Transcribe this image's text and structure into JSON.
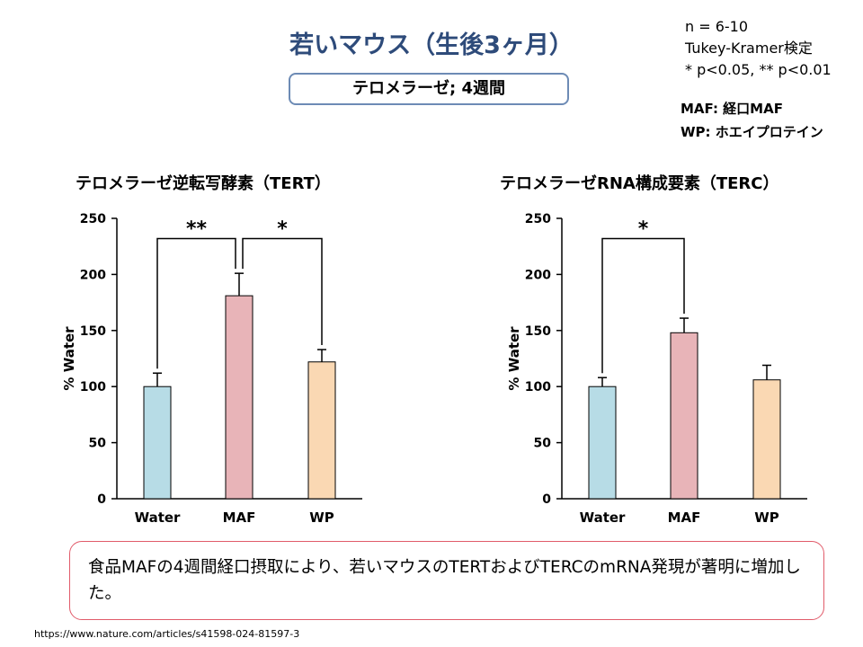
{
  "title": "若いマウス（生後3ヶ月）",
  "subtitle": "テロメラーゼ; 4週間",
  "notes": [
    "n = 6-10",
    "Tukey-Kramer検定",
    "* p<0.05, ** p<0.01"
  ],
  "abbreviations": [
    "MAF: 経口MAF",
    "WP: ホエイプロテイン"
  ],
  "colors": {
    "Water": "#b7dce6",
    "MAF": "#e8b4b8",
    "WP": "#fad8b3",
    "title": "#2e4b7a"
  },
  "chart_data": [
    {
      "type": "bar",
      "title": "テロメラーゼ逆転写酵素（TERT）",
      "ylabel": "% Water",
      "categories": [
        "Water",
        "MAF",
        "WP"
      ],
      "values": [
        100,
        181,
        122
      ],
      "errors": [
        12,
        20,
        11
      ],
      "ylim": [
        0,
        250
      ],
      "yticks": [
        0,
        50,
        100,
        150,
        200,
        250
      ],
      "significance": [
        {
          "from": "Water",
          "to": "MAF",
          "label": "**"
        },
        {
          "from": "MAF",
          "to": "WP",
          "label": "*"
        }
      ]
    },
    {
      "type": "bar",
      "title": "テロメラーゼRNA構成要素（TERC）",
      "ylabel": "% Water",
      "categories": [
        "Water",
        "MAF",
        "WP"
      ],
      "values": [
        100,
        148,
        106
      ],
      "errors": [
        8,
        13,
        13
      ],
      "ylim": [
        0,
        250
      ],
      "yticks": [
        0,
        50,
        100,
        150,
        200,
        250
      ],
      "significance": [
        {
          "from": "Water",
          "to": "MAF",
          "label": "*"
        }
      ]
    }
  ],
  "conclusion": "食品MAFの4週間経口摂取により、若いマウスのTERTおよびTERCのmRNA発現が著明に増加した。",
  "source": "https://www.nature.com/articles/s41598-024-81597-3"
}
